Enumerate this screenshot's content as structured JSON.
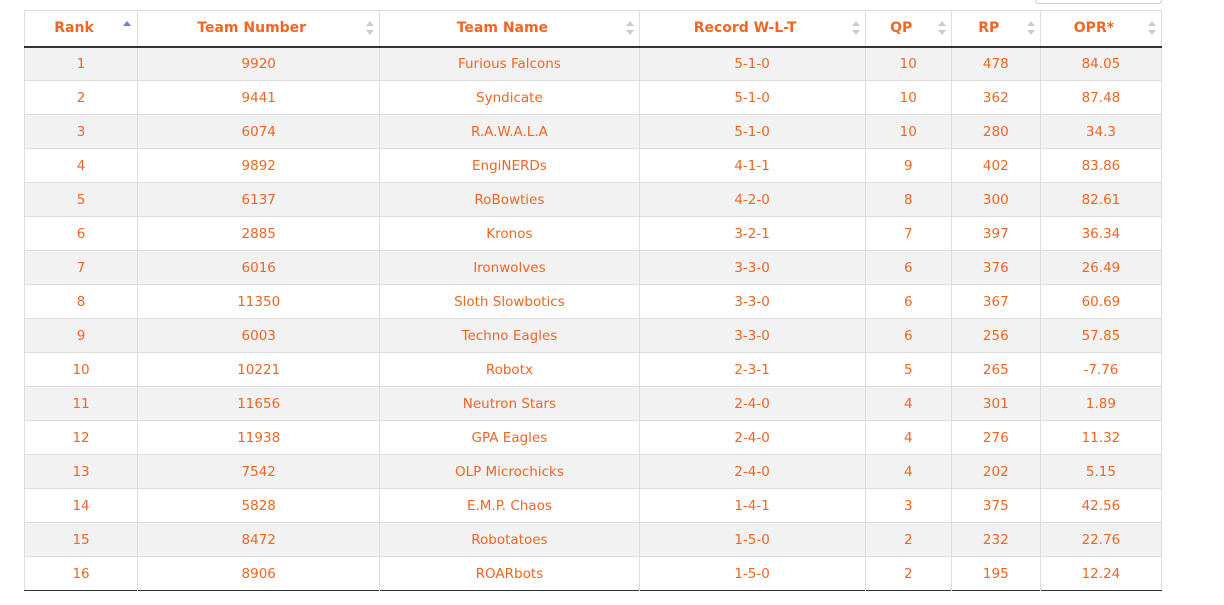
{
  "columns": [
    "Rank",
    "Team Number",
    "Team Name",
    "Record W-L-T",
    "QP",
    "RP",
    "OPR*"
  ],
  "sort": {
    "column": "Rank",
    "direction": "ascending",
    "active_icon": "sort-ascending-icon",
    "inactive_icon": "sort-both-icon"
  },
  "colors": {
    "text": "#f26522",
    "active_sort": "#6a7fd6",
    "stripe": "#f2f2f2"
  },
  "rows": [
    [
      "1",
      "9920",
      "Furious Falcons",
      "5-1-0",
      "10",
      "478",
      "84.05"
    ],
    [
      "2",
      "9441",
      "Syndicate",
      "5-1-0",
      "10",
      "362",
      "87.48"
    ],
    [
      "3",
      "6074",
      "R.A.W.A.L.A",
      "5-1-0",
      "10",
      "280",
      "34.3"
    ],
    [
      "4",
      "9892",
      "EngiNERDs",
      "4-1-1",
      "9",
      "402",
      "83.86"
    ],
    [
      "5",
      "6137",
      "RoBowties",
      "4-2-0",
      "8",
      "300",
      "82.61"
    ],
    [
      "6",
      "2885",
      "Kronos",
      "3-2-1",
      "7",
      "397",
      "36.34"
    ],
    [
      "7",
      "6016",
      "Ironwolves",
      "3-3-0",
      "6",
      "376",
      "26.49"
    ],
    [
      "8",
      "11350",
      "Sloth Slowbotics",
      "3-3-0",
      "6",
      "367",
      "60.69"
    ],
    [
      "9",
      "6003",
      "Techno Eagles",
      "3-3-0",
      "6",
      "256",
      "57.85"
    ],
    [
      "10",
      "10221",
      "Robotx",
      "2-3-1",
      "5",
      "265",
      "-7.76"
    ],
    [
      "11",
      "11656",
      "Neutron Stars",
      "2-4-0",
      "4",
      "301",
      "1.89"
    ],
    [
      "12",
      "11938",
      "GPA Eagles",
      "2-4-0",
      "4",
      "276",
      "11.32"
    ],
    [
      "13",
      "7542",
      "OLP Microchicks",
      "2-4-0",
      "4",
      "202",
      "5.15"
    ],
    [
      "14",
      "5828",
      "E.M.P. Chaos",
      "1-4-1",
      "3",
      "375",
      "42.56"
    ],
    [
      "15",
      "8472",
      "Robotatoes",
      "1-5-0",
      "2",
      "232",
      "22.76"
    ],
    [
      "16",
      "8906",
      "ROARbots",
      "1-5-0",
      "2",
      "195",
      "12.24"
    ]
  ]
}
